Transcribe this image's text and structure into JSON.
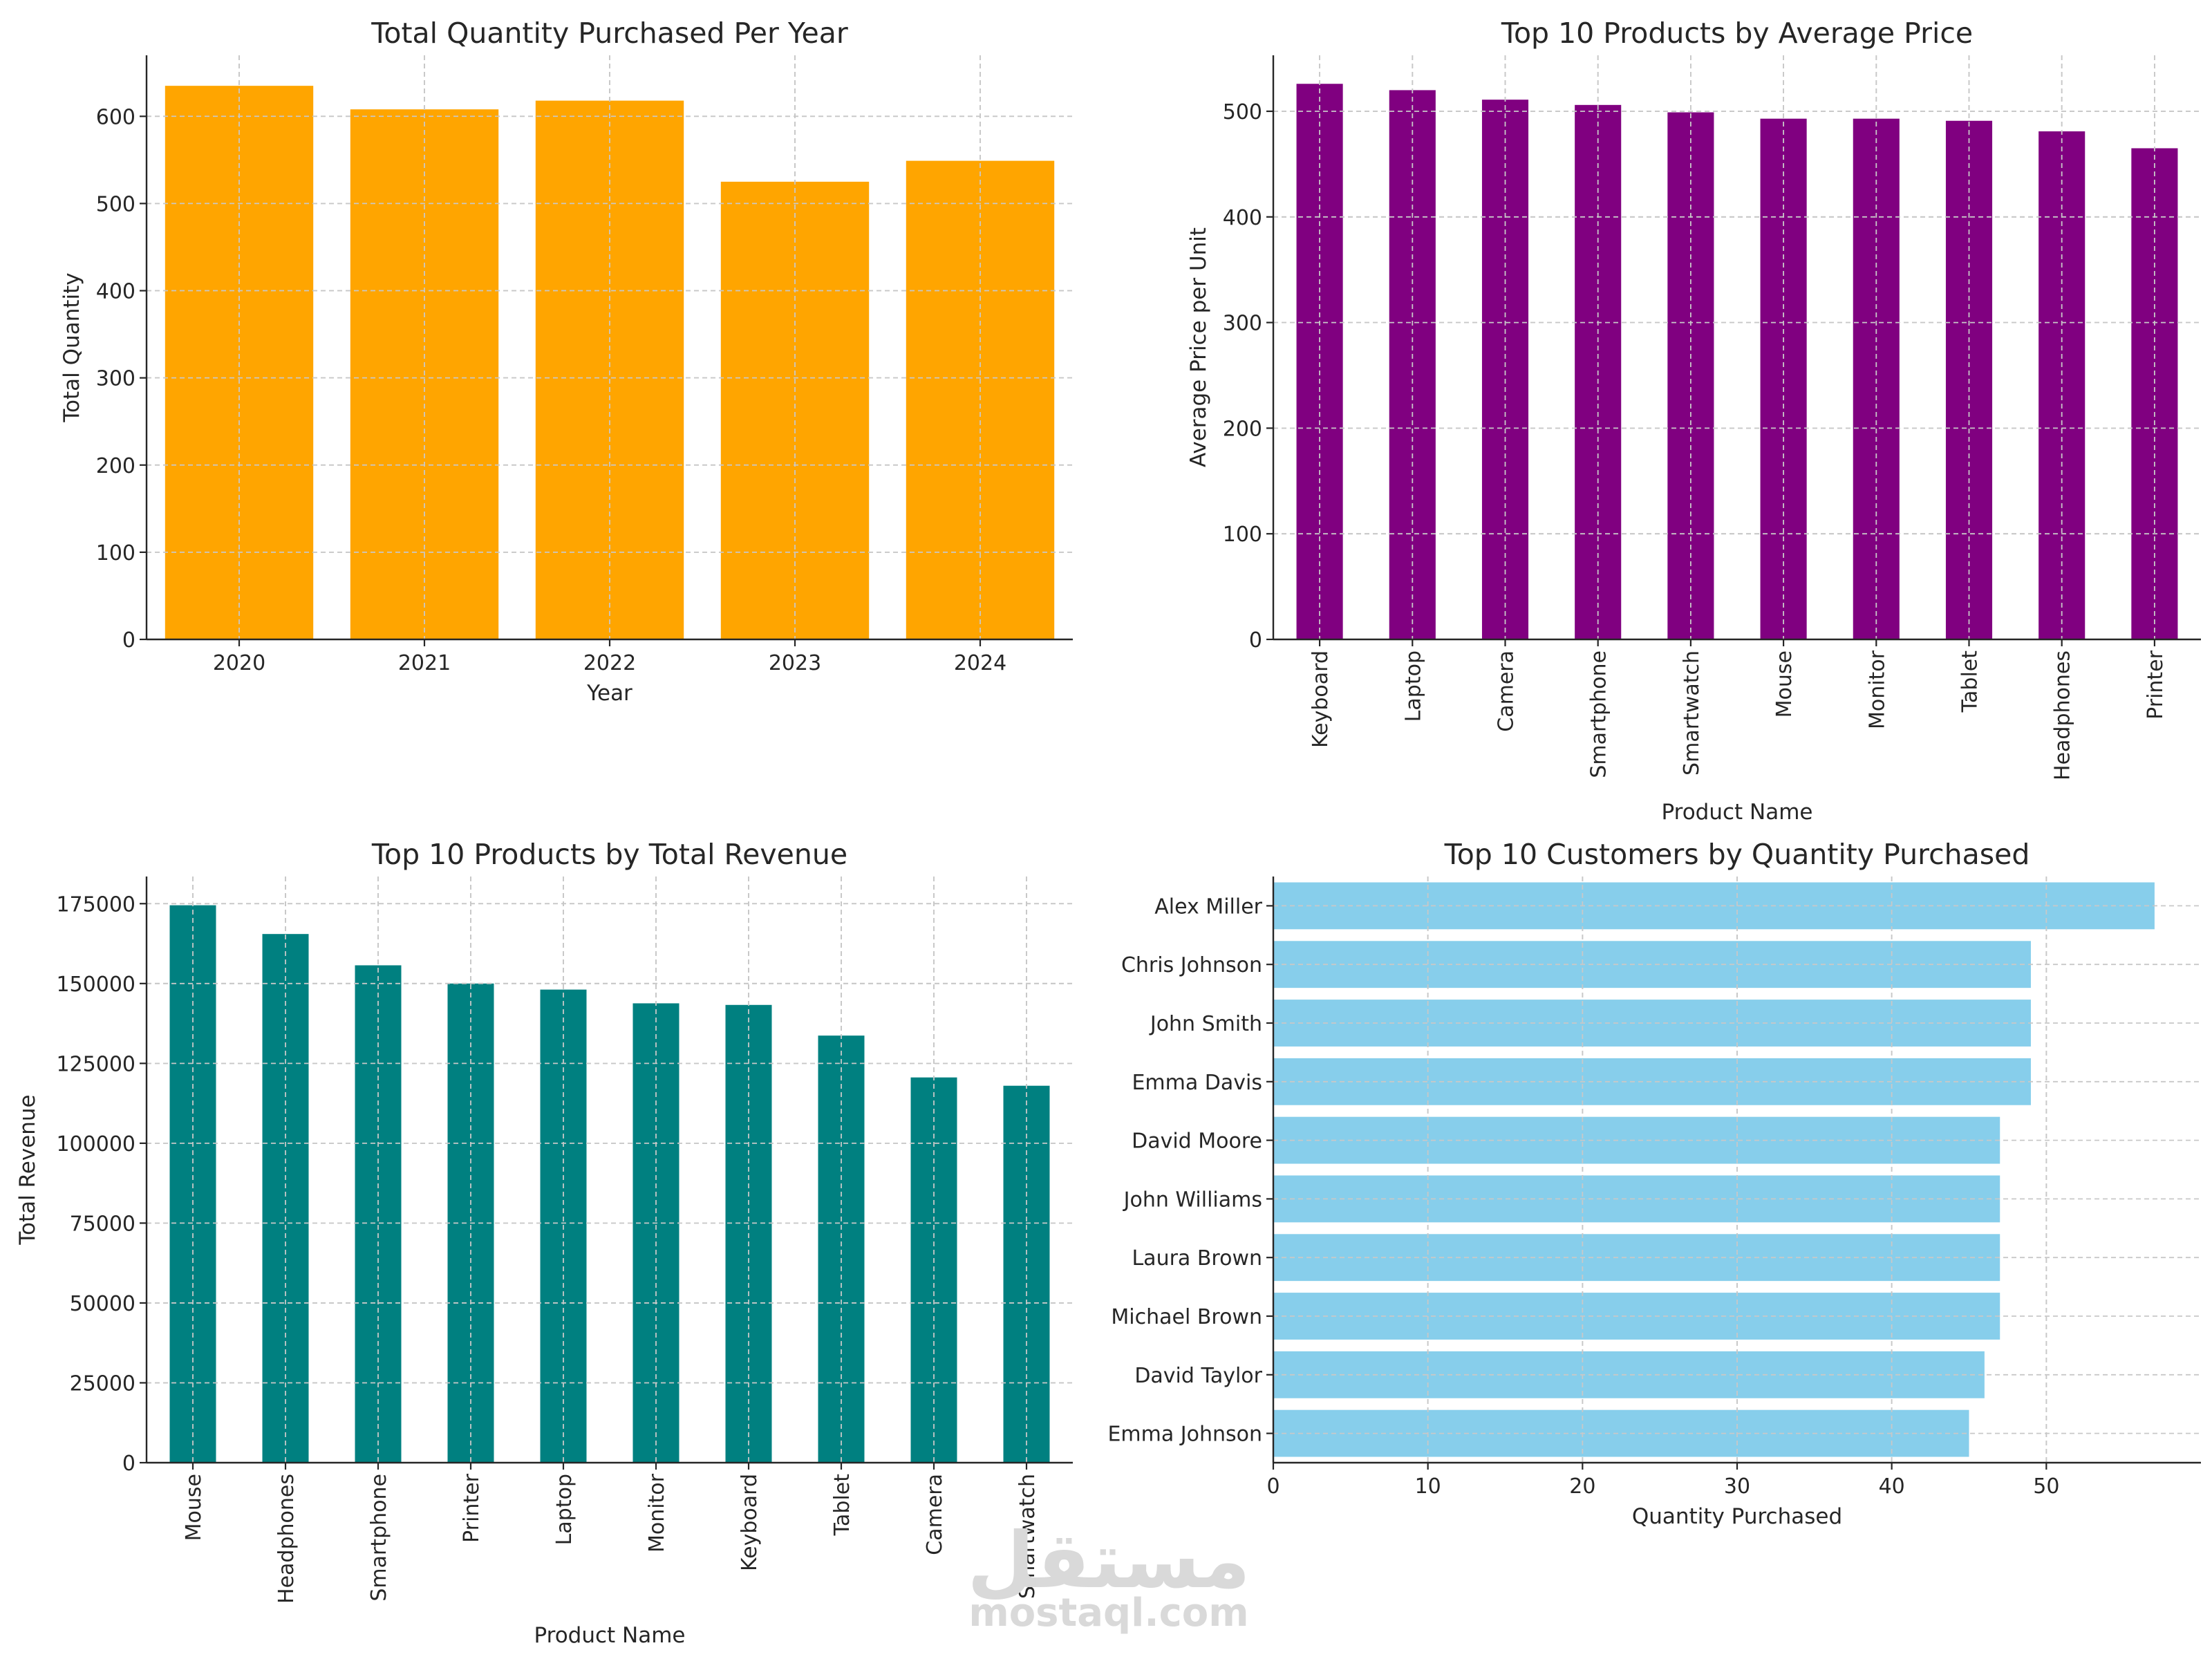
{
  "chart_data": [
    {
      "id": "qty-per-year",
      "type": "bar",
      "title": "Total Quantity Purchased Per Year",
      "xlabel": "Year",
      "ylabel": "Total Quantity",
      "categories": [
        "2020",
        "2021",
        "2022",
        "2023",
        "2024"
      ],
      "values": [
        635,
        608,
        618,
        525,
        549
      ],
      "ylim": [
        0,
        670
      ],
      "yticks": [
        0,
        100,
        200,
        300,
        400,
        500,
        600
      ],
      "color": "#ffa500",
      "grid": true
    },
    {
      "id": "avg-price",
      "type": "bar",
      "title": "Top 10 Products by Average Price",
      "xlabel": "Product Name",
      "ylabel": "Average Price per Unit",
      "categories": [
        "Keyboard",
        "Laptop",
        "Camera",
        "Smartphone",
        "Smartwatch",
        "Mouse",
        "Monitor",
        "Tablet",
        "Headphones",
        "Printer"
      ],
      "values": [
        526,
        520,
        511,
        506,
        499,
        493,
        493,
        491,
        481,
        465
      ],
      "ylim": [
        0,
        553
      ],
      "yticks": [
        0,
        100,
        200,
        300,
        400,
        500
      ],
      "color": "#800080",
      "grid": true
    },
    {
      "id": "total-revenue",
      "type": "bar",
      "title": "Top 10 Products by Total Revenue",
      "xlabel": "Product Name",
      "ylabel": "Total Revenue",
      "categories": [
        "Mouse",
        "Headphones",
        "Smartphone",
        "Printer",
        "Laptop",
        "Monitor",
        "Keyboard",
        "Tablet",
        "Camera",
        "Smartwatch"
      ],
      "values": [
        174500,
        165500,
        155700,
        150000,
        148100,
        143800,
        143300,
        133700,
        120600,
        118000
      ],
      "ylim": [
        0,
        183500
      ],
      "yticks": [
        0,
        25000,
        50000,
        75000,
        100000,
        125000,
        150000,
        175000
      ],
      "color": "#008080",
      "grid": true
    },
    {
      "id": "top-customers",
      "type": "bar",
      "orientation": "horizontal",
      "title": "Top 10 Customers by Quantity Purchased",
      "xlabel": "Quantity Purchased",
      "ylabel": "",
      "categories": [
        "Alex Miller",
        "Chris Johnson",
        "John Smith",
        "Emma Davis",
        "David Moore",
        "John Williams",
        "Laura Brown",
        "Michael Brown",
        "David Taylor",
        "Emma Johnson"
      ],
      "values": [
        57,
        49,
        49,
        49,
        47,
        47,
        47,
        47,
        46,
        45
      ],
      "xlim": [
        0,
        60
      ],
      "xticks": [
        0,
        10,
        20,
        30,
        40,
        50
      ],
      "color": "#87ceeb",
      "grid": true
    }
  ],
  "watermark": {
    "arabic": "مستقل",
    "latin": "mostaql.com"
  }
}
